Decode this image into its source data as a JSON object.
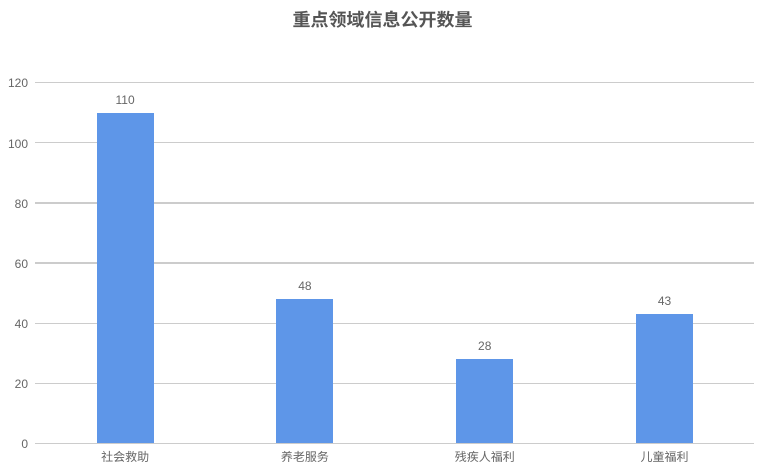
{
  "page": {
    "background_color": "#ffffff"
  },
  "chart_data": {
    "type": "bar",
    "title": "重点领域信息公开数量",
    "categories": [
      "社会救助",
      "养老服务",
      "残疾人福利",
      "儿童福利"
    ],
    "values": [
      110,
      48,
      28,
      43
    ],
    "xlabel": "",
    "ylabel": "",
    "ylim": [
      0,
      120
    ],
    "yticks": [
      0,
      20,
      40,
      60,
      80,
      100,
      120
    ],
    "grid": true,
    "legend": false,
    "colors": {
      "bar": "#5e96e8",
      "gridline": "#cccccc",
      "title_text": "#555555",
      "axis_label_text": "#666666",
      "value_label_text": "#666666",
      "category_label_text": "#666666"
    }
  }
}
